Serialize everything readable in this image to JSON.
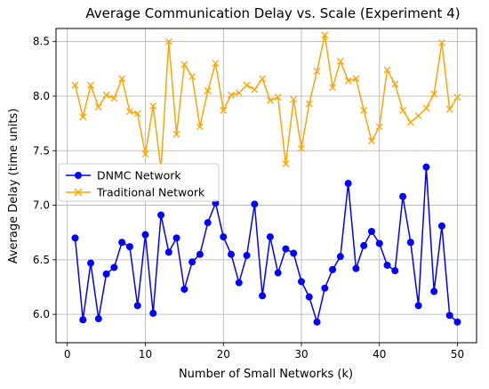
{
  "chart_data": {
    "type": "line",
    "title": "Average Communication Delay vs. Scale (Experiment 4)",
    "xlabel": "Number of Small Networks (k)",
    "ylabel": "Average Delay (time units)",
    "xlim": [
      -1.45,
      52.45
    ],
    "ylim": [
      5.74,
      8.62
    ],
    "xticks": [
      0,
      10,
      20,
      30,
      40,
      50
    ],
    "yticks": [
      6.0,
      6.5,
      7.0,
      7.5,
      8.0,
      8.5
    ],
    "ytick_labels": [
      "6.0",
      "6.5",
      "7.0",
      "7.5",
      "8.0",
      "8.5"
    ],
    "grid": true,
    "legend_position": "center-left",
    "x": [
      1,
      2,
      3,
      4,
      5,
      6,
      7,
      8,
      9,
      10,
      11,
      12,
      13,
      14,
      15,
      16,
      17,
      18,
      19,
      20,
      21,
      22,
      23,
      24,
      25,
      26,
      27,
      28,
      29,
      30,
      31,
      32,
      33,
      34,
      35,
      36,
      37,
      38,
      39,
      40,
      41,
      42,
      43,
      44,
      45,
      46,
      47,
      48,
      49,
      50
    ],
    "series": [
      {
        "name": "DNMC Network",
        "color": "#0000ff",
        "marker": "circle",
        "values": [
          6.7,
          5.95,
          6.47,
          5.96,
          6.37,
          6.43,
          6.66,
          6.62,
          6.08,
          6.73,
          6.01,
          6.91,
          6.57,
          6.7,
          6.23,
          6.48,
          6.55,
          6.84,
          7.02,
          6.71,
          6.55,
          6.29,
          6.54,
          7.01,
          6.17,
          6.71,
          6.38,
          6.6,
          6.56,
          6.3,
          6.16,
          5.93,
          6.24,
          6.41,
          6.53,
          7.2,
          6.42,
          6.63,
          6.76,
          6.65,
          6.45,
          6.4,
          7.08,
          6.66,
          6.08,
          7.35,
          6.21,
          6.81,
          5.99,
          5.93
        ]
      },
      {
        "name": "Traditional Network",
        "color": "#ffa500",
        "marker": "x",
        "values": [
          8.1,
          7.81,
          8.1,
          7.9,
          8.01,
          7.98,
          8.16,
          7.86,
          7.84,
          7.47,
          7.91,
          7.33,
          8.5,
          7.65,
          8.29,
          8.18,
          7.72,
          8.05,
          8.3,
          7.87,
          8.01,
          8.03,
          8.1,
          8.06,
          8.16,
          7.96,
          7.99,
          7.38,
          7.97,
          7.52,
          7.93,
          8.23,
          8.56,
          8.08,
          8.32,
          8.14,
          8.16,
          7.87,
          7.59,
          7.72,
          8.24,
          8.11,
          7.87,
          7.76,
          7.82,
          7.89,
          8.02,
          8.49,
          7.88,
          7.99
        ]
      }
    ]
  }
}
